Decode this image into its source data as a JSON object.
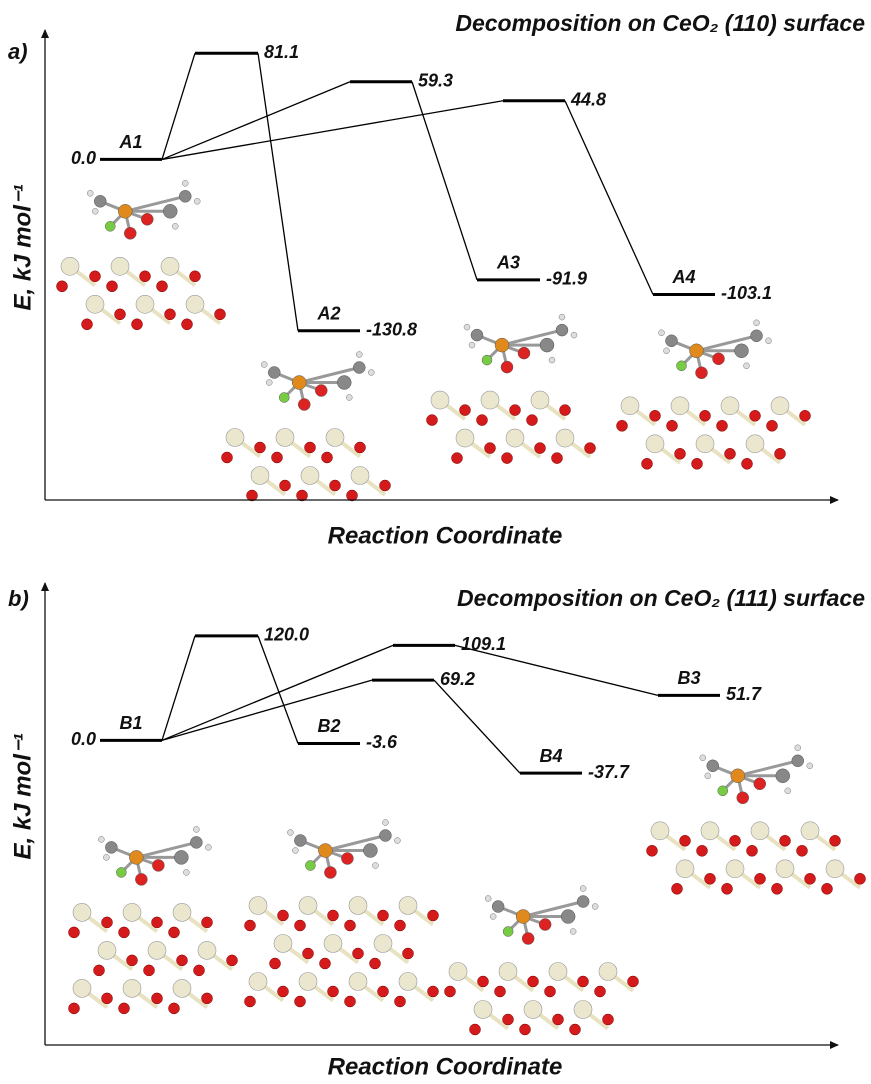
{
  "chart_data": [
    {
      "type": "energy",
      "panel": "a)",
      "title": "Decomposition on CeO₂ (110) surface",
      "xlabel": "Reaction Coordinate",
      "ylabel": "E, kJ mol⁻¹",
      "categories": [
        "A1",
        null,
        "A2",
        null,
        "A3",
        null,
        "A4"
      ],
      "values": [
        0,
        81.1,
        -130.8,
        59.3,
        -91.9,
        44.8,
        -103.1
      ],
      "value_labels": [
        "0.0",
        "81.1",
        "-130.8",
        "59.3",
        "-91.9",
        "44.8",
        "-103.1"
      ],
      "ylim": [
        -260,
        95
      ],
      "color": "#000000"
    },
    {
      "type": "energy",
      "panel": "b)",
      "title": "Decomposition on CeO₂ (111) surface",
      "xlabel": "Reaction Coordinate",
      "ylabel": "E, kJ mol⁻¹",
      "categories": [
        "B1",
        null,
        "B2",
        null,
        "B3",
        null,
        "B4"
      ],
      "values": [
        0,
        120,
        -3.6,
        109.1,
        51.7,
        69.2,
        -37.7
      ],
      "value_labels": [
        "0.0",
        "120.0",
        "-3.6",
        "109.1",
        "51.7",
        "69.2",
        "-37.7"
      ],
      "ylim": [
        -350,
        175
      ],
      "color": "#000000"
    }
  ]
}
